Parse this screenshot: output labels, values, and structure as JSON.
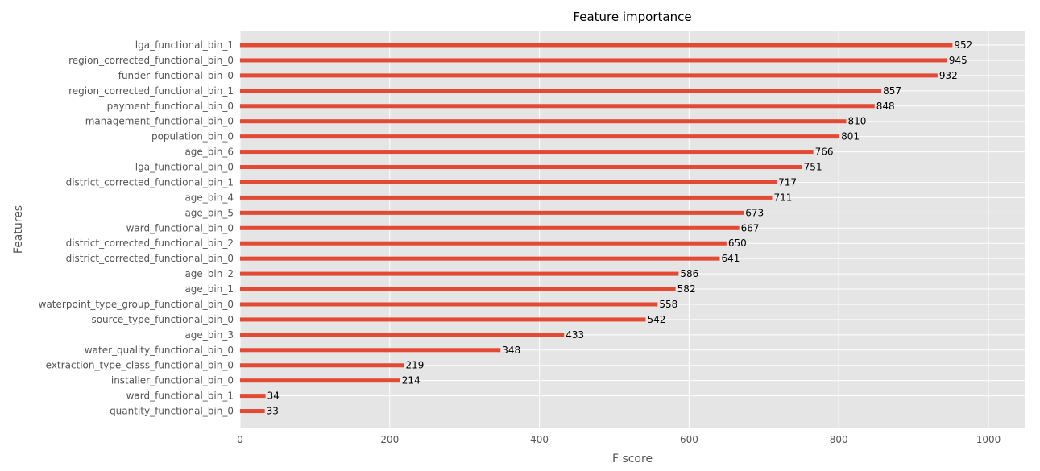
{
  "chart_data": {
    "type": "bar",
    "orientation": "horizontal",
    "title": "Feature importance",
    "xlabel": "F score",
    "ylabel": "Features",
    "xlim": [
      0,
      1050
    ],
    "xticks": [
      0,
      200,
      400,
      600,
      800,
      1000
    ],
    "grid": true,
    "bar_color": "#e24a33",
    "background_color": "#e5e5e5",
    "categories": [
      "lga_functional_bin_1",
      "region_corrected_functional_bin_0",
      "funder_functional_bin_0",
      "region_corrected_functional_bin_1",
      "payment_functional_bin_0",
      "management_functional_bin_0",
      "population_bin_0",
      "age_bin_6",
      "lga_functional_bin_0",
      "district_corrected_functional_bin_1",
      "age_bin_4",
      "age_bin_5",
      "ward_functional_bin_0",
      "district_corrected_functional_bin_2",
      "district_corrected_functional_bin_0",
      "age_bin_2",
      "age_bin_1",
      "waterpoint_type_group_functional_bin_0",
      "source_type_functional_bin_0",
      "age_bin_3",
      "water_quality_functional_bin_0",
      "extraction_type_class_functional_bin_0",
      "installer_functional_bin_0",
      "ward_functional_bin_1",
      "quantity_functional_bin_0"
    ],
    "values": [
      952,
      945,
      932,
      857,
      848,
      810,
      801,
      766,
      751,
      717,
      711,
      673,
      667,
      650,
      641,
      586,
      582,
      558,
      542,
      433,
      348,
      219,
      214,
      34,
      33
    ]
  }
}
